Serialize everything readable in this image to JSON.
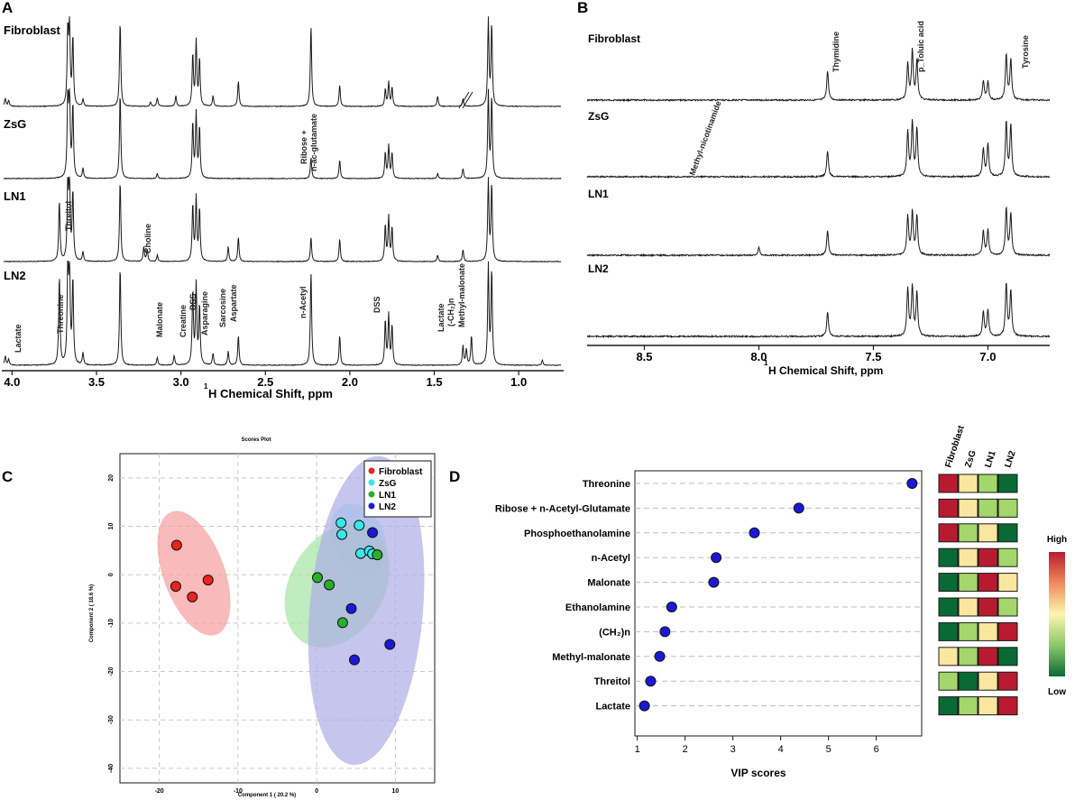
{
  "panels": {
    "A": "A",
    "B": "B",
    "C": "C",
    "D": "D"
  },
  "chart_data": [
    {
      "id": "A",
      "type": "line",
      "title": "",
      "xlabel_prefix": "1",
      "xlabel": "H Chemical Shift, ppm",
      "xlim": [
        4.05,
        0.75
      ],
      "xticks": [
        "4.0",
        "3.5",
        "3.0",
        "2.5",
        "2.0",
        "1.5",
        "1.0"
      ],
      "xtick_values": [
        4.0,
        3.5,
        3.0,
        2.5,
        2.0,
        1.5,
        1.0
      ],
      "series": [
        {
          "name": "Fibroblast",
          "peaks": [
            [
              4.06,
              0.06
            ],
            [
              4.04,
              0.09
            ],
            [
              4.02,
              0.07
            ],
            [
              3.67,
              0.85
            ],
            [
              3.66,
              0.95
            ],
            [
              3.64,
              0.8
            ],
            [
              3.58,
              0.08
            ],
            [
              3.36,
              1.0
            ],
            [
              3.18,
              0.05
            ],
            [
              3.14,
              0.1
            ],
            [
              3.03,
              0.12
            ],
            [
              2.93,
              0.6
            ],
            [
              2.91,
              0.75
            ],
            [
              2.89,
              0.55
            ],
            [
              2.81,
              0.12
            ],
            [
              2.66,
              0.3
            ],
            [
              2.23,
              0.95
            ],
            [
              2.06,
              0.25
            ],
            [
              1.79,
              0.2
            ],
            [
              1.77,
              0.28
            ],
            [
              1.75,
              0.22
            ],
            [
              1.48,
              0.12
            ],
            [
              1.33,
              0.09
            ],
            [
              1.18,
              1.0
            ],
            [
              1.16,
              0.95
            ]
          ]
        },
        {
          "name": "ZsG",
          "peaks": [
            [
              3.67,
              0.9
            ],
            [
              3.66,
              1.0
            ],
            [
              3.64,
              0.85
            ],
            [
              3.58,
              0.12
            ],
            [
              3.36,
              1.0
            ],
            [
              3.14,
              0.06
            ],
            [
              2.93,
              0.65
            ],
            [
              2.91,
              0.75
            ],
            [
              2.89,
              0.6
            ],
            [
              2.23,
              0.25
            ],
            [
              2.06,
              0.22
            ],
            [
              1.79,
              0.3
            ],
            [
              1.77,
              0.38
            ],
            [
              1.75,
              0.3
            ],
            [
              1.48,
              0.06
            ],
            [
              1.33,
              0.12
            ],
            [
              1.18,
              1.0
            ],
            [
              1.16,
              0.95
            ]
          ]
        },
        {
          "name": "LN1",
          "peaks": [
            [
              3.72,
              0.75
            ],
            [
              3.67,
              0.9
            ],
            [
              3.66,
              1.0
            ],
            [
              3.64,
              0.85
            ],
            [
              3.58,
              0.12
            ],
            [
              3.36,
              1.0
            ],
            [
              3.22,
              0.18
            ],
            [
              3.2,
              0.15
            ],
            [
              3.14,
              0.08
            ],
            [
              2.93,
              0.7
            ],
            [
              2.91,
              0.78
            ],
            [
              2.89,
              0.65
            ],
            [
              2.72,
              0.18
            ],
            [
              2.66,
              0.3
            ],
            [
              2.23,
              0.3
            ],
            [
              2.06,
              0.28
            ],
            [
              1.79,
              0.45
            ],
            [
              1.77,
              0.55
            ],
            [
              1.75,
              0.42
            ],
            [
              1.48,
              0.08
            ],
            [
              1.33,
              0.15
            ],
            [
              1.18,
              1.0
            ],
            [
              1.16,
              0.95
            ]
          ]
        },
        {
          "name": "LN2",
          "peaks": [
            [
              4.06,
              0.05
            ],
            [
              4.04,
              0.09
            ],
            [
              4.02,
              0.06
            ],
            [
              3.72,
              0.9
            ],
            [
              3.67,
              0.95
            ],
            [
              3.66,
              1.0
            ],
            [
              3.64,
              0.85
            ],
            [
              3.58,
              0.12
            ],
            [
              3.36,
              1.0
            ],
            [
              3.14,
              0.08
            ],
            [
              3.04,
              0.1
            ],
            [
              2.93,
              0.75
            ],
            [
              2.91,
              0.8
            ],
            [
              2.89,
              0.6
            ],
            [
              2.81,
              0.12
            ],
            [
              2.72,
              0.14
            ],
            [
              2.66,
              0.3
            ],
            [
              2.23,
              0.95
            ],
            [
              2.06,
              0.3
            ],
            [
              1.79,
              0.45
            ],
            [
              1.77,
              0.5
            ],
            [
              1.75,
              0.4
            ],
            [
              1.33,
              0.2
            ],
            [
              1.31,
              0.16
            ],
            [
              1.28,
              0.3
            ],
            [
              1.18,
              1.0
            ],
            [
              1.16,
              0.95
            ],
            [
              0.86,
              0.05
            ]
          ]
        }
      ],
      "annotations": [
        "Threitol",
        "Choline",
        "Ribose +",
        "n-ac-glutamate",
        "Lactate",
        "Threonine",
        "Malonate",
        "Creatine",
        "DSS",
        "Asparagine",
        "Sarcosine",
        "Aspartate",
        "n-Acetyl",
        "DSS",
        "Lactate",
        "(-CH₂)n",
        "Methyl-malonate"
      ]
    },
    {
      "id": "B",
      "type": "line",
      "title": "",
      "xlabel_prefix": "1",
      "xlabel": "H Chemical Shift, ppm",
      "xlim": [
        8.75,
        6.73
      ],
      "xticks": [
        "8.5",
        "8.0",
        "7.5",
        "7.0"
      ],
      "xtick_values": [
        8.5,
        8.0,
        7.5,
        7.0
      ],
      "series": [
        {
          "name": "Fibroblast",
          "peaks": [
            [
              7.7,
              0.45
            ],
            [
              7.35,
              0.55
            ],
            [
              7.33,
              0.75
            ],
            [
              7.31,
              0.6
            ],
            [
              7.02,
              0.3
            ],
            [
              7.0,
              0.28
            ],
            [
              6.92,
              0.7
            ],
            [
              6.9,
              0.62
            ]
          ]
        },
        {
          "name": "ZsG",
          "peaks": [
            [
              7.7,
              0.38
            ],
            [
              7.35,
              0.65
            ],
            [
              7.33,
              0.78
            ],
            [
              7.31,
              0.7
            ],
            [
              7.02,
              0.42
            ],
            [
              7.0,
              0.48
            ],
            [
              6.92,
              0.8
            ],
            [
              6.9,
              0.75
            ]
          ]
        },
        {
          "name": "LN1",
          "peaks": [
            [
              8.0,
              0.12
            ],
            [
              7.7,
              0.4
            ],
            [
              7.35,
              0.62
            ],
            [
              7.33,
              0.68
            ],
            [
              7.31,
              0.62
            ],
            [
              7.02,
              0.38
            ],
            [
              7.0,
              0.4
            ],
            [
              6.92,
              0.75
            ],
            [
              6.9,
              0.66
            ]
          ]
        },
        {
          "name": "LN2",
          "peaks": [
            [
              7.7,
              0.35
            ],
            [
              7.35,
              0.68
            ],
            [
              7.33,
              0.7
            ],
            [
              7.31,
              0.62
            ],
            [
              7.02,
              0.35
            ],
            [
              7.0,
              0.38
            ],
            [
              6.92,
              0.75
            ],
            [
              6.9,
              0.65
            ]
          ]
        }
      ],
      "annotations": [
        "Thymidine",
        "p_Toluic acid",
        "Tyrosine",
        "Methyl-nicotinamide"
      ]
    },
    {
      "id": "C",
      "type": "scatter",
      "title": "Scores Plot",
      "xlabel": "Component 1 ( 20.2 %)",
      "ylabel": "Component 2 ( 18.6 %)",
      "xlim": [
        -25,
        15
      ],
      "ylim": [
        -43,
        25
      ],
      "xticks": [
        -20,
        -10,
        0,
        10
      ],
      "yticks": [
        20,
        10,
        0,
        -10,
        -20,
        -30,
        -40
      ],
      "xtick_labels": [
        "-20",
        "-10",
        "0",
        "10"
      ],
      "ytick_labels": [
        "20",
        "10",
        "0",
        "-10",
        "-20",
        "-30",
        "-40"
      ],
      "legend_position": "top-right",
      "series": [
        {
          "name": "Fibroblast",
          "color": "#e8251f",
          "fill": "#f5a0a0",
          "points": [
            [
              -17.8,
              6.1
            ],
            [
              -17.9,
              -2.4
            ],
            [
              -15.8,
              -4.6
            ],
            [
              -13.8,
              -1.1
            ]
          ],
          "ellipse": {
            "cx": -15.6,
            "cy": 0.3,
            "rx": 3.9,
            "ry": 13.5,
            "angle": -20
          }
        },
        {
          "name": "ZsG",
          "color": "#35e8ea",
          "fill": "#a2ecee",
          "points": [
            [
              3.1,
              10.7
            ],
            [
              3.2,
              8.3
            ],
            [
              5.4,
              10.2
            ],
            [
              5.6,
              4.4
            ],
            [
              6.7,
              4.9
            ],
            [
              7.1,
              4.3
            ]
          ],
          "ellipse": {
            "cx": 5.3,
            "cy": 7.4,
            "rx": 3.3,
            "ry": 7.6,
            "angle": -24
          }
        },
        {
          "name": "LN1",
          "color": "#27b02a",
          "fill": "#a6e6a6",
          "points": [
            [
              0.1,
              -0.6
            ],
            [
              1.6,
              -2.1
            ],
            [
              3.3,
              -9.9
            ],
            [
              7.7,
              4.1
            ]
          ],
          "ellipse": {
            "cx": 2.6,
            "cy": -2.3,
            "rx": 6.0,
            "ry": 13.6,
            "angle": 30
          }
        },
        {
          "name": "LN2",
          "color": "#1a1ad6",
          "fill": "#aeaee6",
          "points": [
            [
              7.1,
              8.7
            ],
            [
              4.4,
              -7.0
            ],
            [
              4.8,
              -17.6
            ],
            [
              9.3,
              -14.4
            ]
          ],
          "ellipse": {
            "cx": 6.3,
            "cy": -7.4,
            "rx": 7.2,
            "ry": 32.0,
            "angle": 5
          }
        }
      ]
    },
    {
      "id": "D",
      "type": "scatter",
      "title": "",
      "xlabel": "VIP scores",
      "ylabel": "",
      "xlim": [
        0.95,
        6.95
      ],
      "xticks": [
        1,
        2,
        3,
        4,
        5,
        6
      ],
      "xtick_labels": [
        "1",
        "2",
        "3",
        "4",
        "5",
        "6"
      ],
      "categories": [
        "Threonine",
        "Ribose + n-Acetyl-Glutamate",
        "Phosphoethanolamine",
        "n-Acetyl",
        "Malonate",
        "Ethanolamine",
        "(CH₂)n",
        "Methyl-malonate",
        "Threitol",
        "Lactate"
      ],
      "values": [
        6.75,
        4.38,
        3.45,
        2.65,
        2.6,
        1.72,
        1.58,
        1.47,
        1.28,
        1.15
      ],
      "heatmap": {
        "columns": [
          "Fibroblast",
          "ZsG",
          "LN1",
          "LN2"
        ],
        "levels": [
          [
            4,
            2,
            1,
            0
          ],
          [
            4,
            2,
            1,
            1
          ],
          [
            4,
            1,
            2,
            0
          ],
          [
            0,
            2,
            4,
            1
          ],
          [
            0,
            1,
            4,
            2
          ],
          [
            0,
            2,
            4,
            1
          ],
          [
            0,
            1,
            2,
            4
          ],
          [
            2,
            1,
            4,
            0
          ],
          [
            1,
            0,
            2,
            4
          ],
          [
            0,
            1,
            2,
            4
          ]
        ],
        "palette": [
          "#0a6a36",
          "#a3d66b",
          "#fbe6a0",
          "#f7ad62",
          "#b81b30"
        ]
      },
      "colorbar": {
        "high_label": "High",
        "low_label": "Low"
      }
    }
  ],
  "colors": {
    "spectrum": "#1a1a1a",
    "vip_point": "#1a1ad6"
  }
}
